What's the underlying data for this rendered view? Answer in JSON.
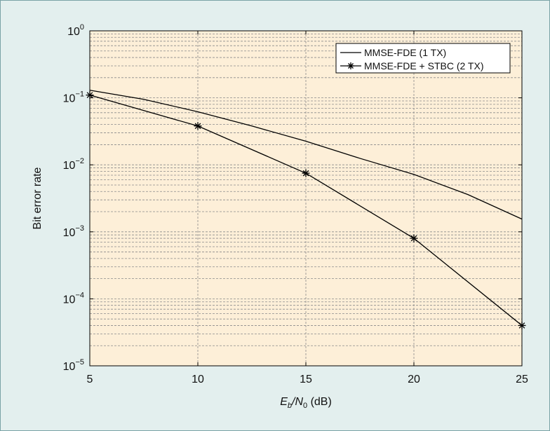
{
  "chart_data": {
    "type": "line",
    "xlabel_parts": [
      "E",
      "b",
      "/N",
      "0",
      " (dB)"
    ],
    "ylabel": "Bit error rate",
    "x_ticks": [
      "5",
      "10",
      "15",
      "20",
      "25"
    ],
    "y_ticks": [
      {
        "base": "10",
        "exp": "0"
      },
      {
        "base": "10",
        "exp": "−1"
      },
      {
        "base": "10",
        "exp": "−2"
      },
      {
        "base": "10",
        "exp": "−3"
      },
      {
        "base": "10",
        "exp": "−4"
      },
      {
        "base": "10",
        "exp": "−5"
      }
    ],
    "xlim": [
      5,
      25
    ],
    "ylim": [
      1e-05,
      1
    ],
    "y_scale": "log",
    "grid": true,
    "legend_position": "top-right",
    "series": [
      {
        "name": "MMSE-FDE (1 TX)",
        "marker": "none",
        "x": [
          5,
          7.5,
          10,
          12.5,
          15,
          17.5,
          20,
          22.5,
          25
        ],
        "y": [
          0.13,
          0.095,
          0.062,
          0.038,
          0.0225,
          0.0125,
          0.0072,
          0.0036,
          0.00155
        ]
      },
      {
        "name": "MMSE-FDE + STBC (2 TX)",
        "marker": "asterisk",
        "x": [
          5,
          10,
          15,
          20,
          25
        ],
        "y": [
          0.11,
          0.038,
          0.0075,
          0.0008,
          4e-05
        ]
      }
    ],
    "colors": {
      "background": "#e3efee",
      "plot_area": "#fdefd8",
      "lines": "#000000"
    }
  }
}
